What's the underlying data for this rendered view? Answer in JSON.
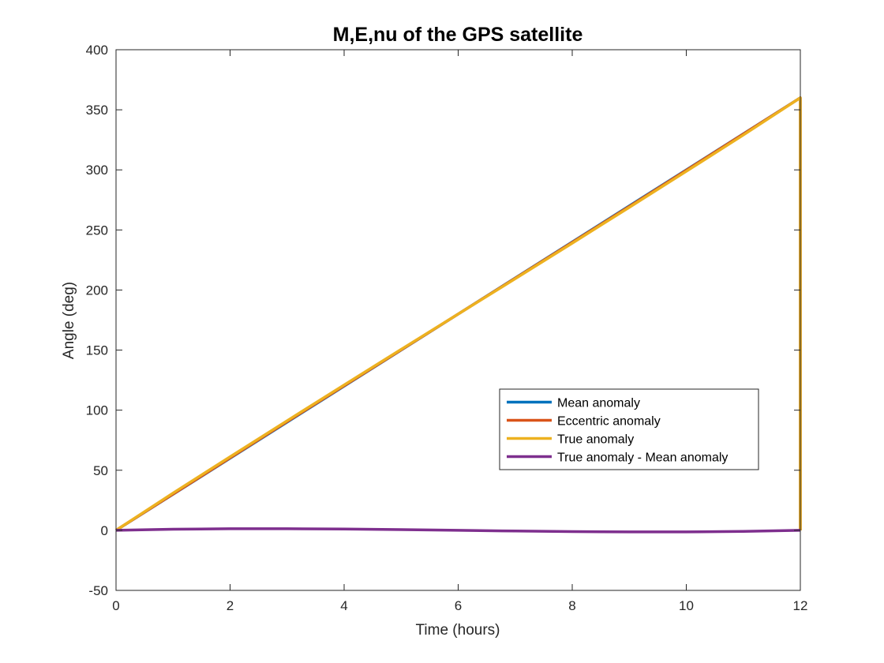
{
  "chart_data": {
    "type": "line",
    "title": "M,E,nu of the GPS satellite",
    "xlabel": "Time (hours)",
    "ylabel": "Angle (deg)",
    "xlim": [
      0,
      12
    ],
    "ylim": [
      -50,
      400
    ],
    "xticks": [
      0,
      2,
      4,
      6,
      8,
      10,
      12
    ],
    "xtick_labels": [
      "0",
      "2",
      "4",
      "6",
      "8",
      "10",
      "12"
    ],
    "yticks": [
      -50,
      0,
      50,
      100,
      150,
      200,
      250,
      300,
      350,
      400
    ],
    "ytick_labels": [
      "-50",
      "0",
      "50",
      "100",
      "150",
      "200",
      "250",
      "300",
      "350",
      "400"
    ],
    "grid": false,
    "legend_position": "center-right",
    "series": [
      {
        "name": "Mean anomaly",
        "color": "#0072BD",
        "points": [
          [
            0,
            0
          ],
          [
            12,
            360
          ],
          [
            12,
            0
          ]
        ]
      },
      {
        "name": "Eccentric anomaly",
        "color": "#D95319",
        "points": [
          [
            0,
            0
          ],
          [
            3,
            90.5
          ],
          [
            6,
            180
          ],
          [
            9,
            269.5
          ],
          [
            12,
            360
          ],
          [
            12,
            0
          ]
        ]
      },
      {
        "name": "True anomaly",
        "color": "#EDB120",
        "points": [
          [
            0,
            0
          ],
          [
            1,
            31
          ],
          [
            2,
            61.2
          ],
          [
            3,
            91.2
          ],
          [
            4,
            121
          ],
          [
            5,
            150.6
          ],
          [
            6,
            180
          ],
          [
            7,
            209.4
          ],
          [
            8,
            239
          ],
          [
            9,
            268.8
          ],
          [
            10,
            298.8
          ],
          [
            11,
            329
          ],
          [
            12,
            360
          ],
          [
            12,
            0
          ]
        ]
      },
      {
        "name": "True anomaly - Mean anomaly",
        "color": "#7E2F8E",
        "points": [
          [
            0,
            0
          ],
          [
            1,
            0.9
          ],
          [
            2,
            1.3
          ],
          [
            3,
            1.3
          ],
          [
            4,
            1.1
          ],
          [
            5,
            0.6
          ],
          [
            6,
            0
          ],
          [
            7,
            -0.6
          ],
          [
            8,
            -1.1
          ],
          [
            9,
            -1.3
          ],
          [
            10,
            -1.3
          ],
          [
            11,
            -0.9
          ],
          [
            12,
            0
          ]
        ]
      }
    ]
  }
}
